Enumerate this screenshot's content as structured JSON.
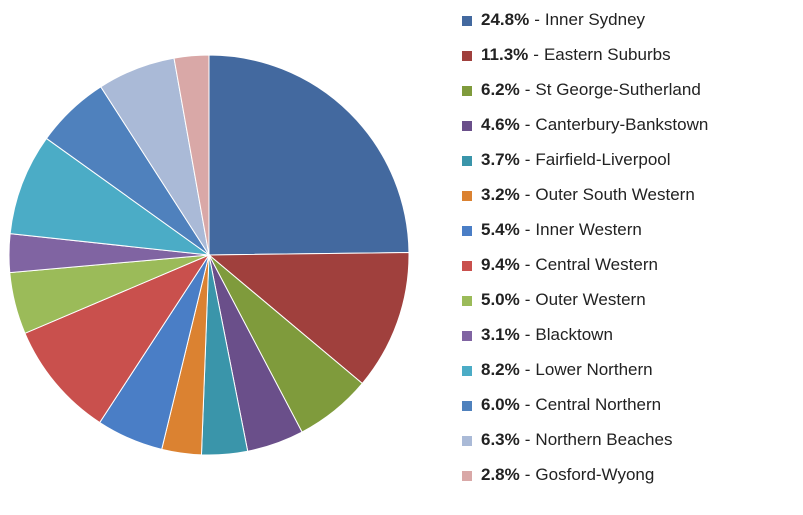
{
  "chart_data": {
    "type": "pie",
    "categories": [
      "Inner Sydney",
      "Eastern Suburbs",
      "St George-Sutherland",
      "Canterbury-Bankstown",
      "Fairfield-Liverpool",
      "Outer South Western",
      "Inner Western",
      "Central Western",
      "Outer Western",
      "Blacktown",
      "Lower Northern",
      "Central Northern",
      "Northern Beaches",
      "Gosford-Wyong"
    ],
    "values": [
      24.8,
      11.3,
      6.2,
      4.6,
      3.7,
      3.2,
      5.4,
      9.4,
      5.0,
      3.1,
      8.2,
      6.0,
      6.3,
      2.8
    ],
    "value_labels": [
      "24.8%",
      "11.3%",
      "6.2%",
      "4.6%",
      "3.7%",
      "3.2%",
      "5.4%",
      "9.4%",
      "5.0%",
      "3.1%",
      "8.2%",
      "6.0%",
      "6.3%",
      "2.8%"
    ],
    "label_separator": "-",
    "colors": [
      "#43699F",
      "#A0403D",
      "#7F9B3C",
      "#6A4F8A",
      "#3A95AA",
      "#DB8231",
      "#4A7EC6",
      "#C9504D",
      "#9BBB59",
      "#8064A2",
      "#4BACC6",
      "#4F81BD",
      "#AABAD7",
      "#D9A8A7"
    ],
    "legend": "right"
  }
}
